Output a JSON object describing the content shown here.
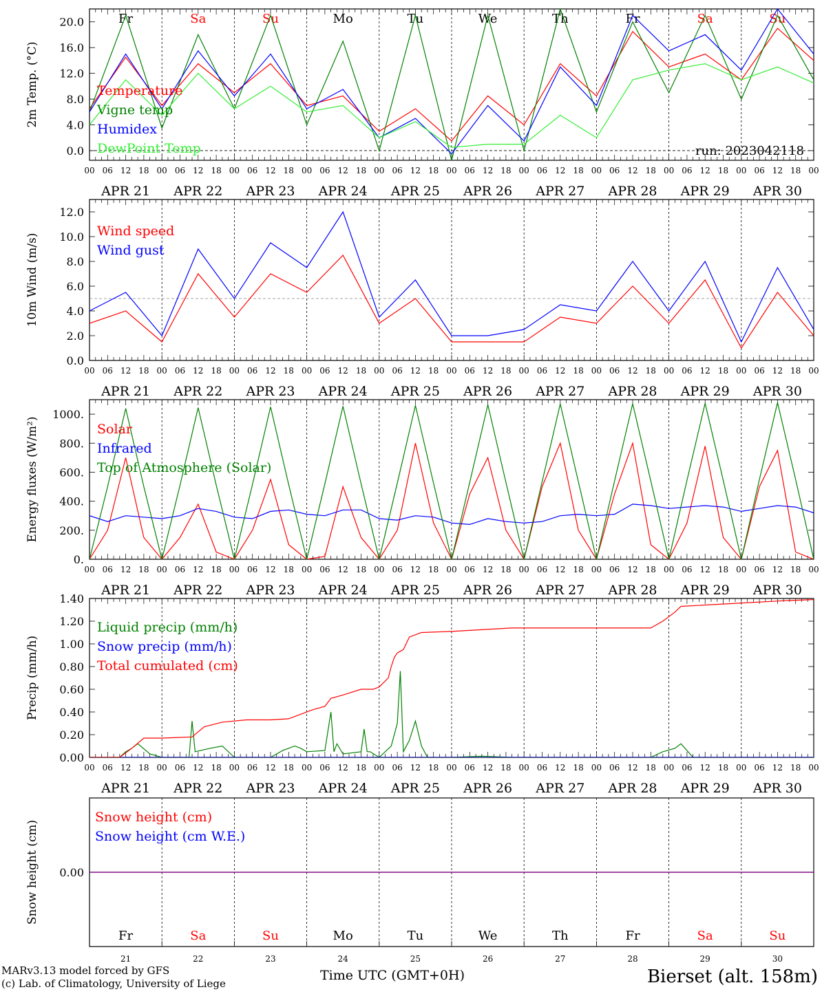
{
  "footer": {
    "credit_line1": "MARv3.13 model forced by GFS",
    "credit_line2": "(c) Lab. of Climatology, University of Liege",
    "time_axis_label": "Time UTC (GMT+0H)",
    "station": "Bierset (alt. 158m)"
  },
  "days": {
    "weekdays": [
      "Fr",
      "Sa",
      "Su",
      "Mo",
      "Tu",
      "We",
      "Th",
      "Fr",
      "Sa",
      "Su"
    ],
    "weekend_flags": [
      false,
      true,
      true,
      false,
      false,
      false,
      false,
      false,
      true,
      true
    ],
    "dates": [
      "APR 21",
      "APR 22",
      "APR 23",
      "APR 24",
      "APR 25",
      "APR 26",
      "APR 27",
      "APR 28",
      "APR 29",
      "APR 30"
    ],
    "day_numbers": [
      "21",
      "22",
      "23",
      "24",
      "25",
      "26",
      "27",
      "28",
      "29",
      "30"
    ],
    "hour_ticks": [
      "00",
      "06",
      "12",
      "18"
    ],
    "final_tick": "00"
  },
  "colors": {
    "red": "#ff0000",
    "green": "#008000",
    "blue": "#0000ff",
    "light_green": "#33ee33",
    "purple": "#7f007f",
    "weekday_text": "#000000",
    "weekend_text": "#ff0000",
    "station_text": "#3333ee"
  },
  "chart_data": [
    {
      "type": "line",
      "ylabel": "2m Temp. (°C)",
      "ylim": [
        -1.5,
        22
      ],
      "yticks": [
        "0.0",
        "4.0",
        "8.0",
        "12.0",
        "16.0",
        "20.0"
      ],
      "ytick_values": [
        0,
        4,
        8,
        12,
        16,
        20
      ],
      "ref_line": 0,
      "annotation": "run: 2023042118",
      "x_hours": [
        0,
        12,
        24,
        36,
        48,
        60,
        72,
        84,
        96,
        108,
        120,
        132,
        144,
        156,
        168,
        180,
        192,
        204,
        216,
        228,
        240
      ],
      "series": [
        {
          "name": "Temperature",
          "color": "red",
          "values": [
            6.5,
            14.5,
            7.0,
            13.5,
            9.0,
            13.5,
            7.0,
            8.5,
            3.0,
            6.5,
            1.5,
            8.5,
            4.0,
            13.5,
            8.5,
            18.5,
            13.0,
            15.0,
            11.0,
            19.0,
            14.0
          ]
        },
        {
          "name": "Vigne temp",
          "color": "green",
          "values": [
            6.0,
            21.0,
            3.5,
            18.0,
            6.5,
            21.0,
            4.0,
            17.0,
            0.0,
            21.0,
            -1.5,
            21.0,
            0.0,
            22.0,
            6.0,
            20.0,
            9.0,
            21.0,
            8.0,
            21.0,
            11.0
          ]
        },
        {
          "name": "Humidex",
          "color": "blue",
          "values": [
            6.0,
            15.0,
            6.5,
            15.5,
            8.5,
            15.0,
            6.5,
            9.5,
            2.0,
            5.0,
            -0.5,
            7.0,
            1.5,
            13.0,
            7.0,
            21.0,
            15.5,
            18.0,
            12.5,
            22.0,
            15.0
          ]
        },
        {
          "name": "DewPoint Temp",
          "color": "light_green",
          "values": [
            4.0,
            11.0,
            5.5,
            12.0,
            6.5,
            10.0,
            6.0,
            7.0,
            2.0,
            4.5,
            0.5,
            1.0,
            1.0,
            5.5,
            2.0,
            11.0,
            12.5,
            13.5,
            11.0,
            13.0,
            10.5
          ]
        }
      ]
    },
    {
      "type": "line",
      "ylabel": "10m Wind (m/s)",
      "ylim": [
        0,
        13
      ],
      "yticks": [
        "0.0",
        "2.0",
        "4.0",
        "6.0",
        "8.0",
        "10.0",
        "12.0"
      ],
      "ytick_values": [
        0,
        2,
        4,
        6,
        8,
        10,
        12
      ],
      "ref_line": 5,
      "x_hours": [
        0,
        12,
        24,
        36,
        48,
        60,
        72,
        84,
        96,
        108,
        120,
        132,
        144,
        156,
        168,
        180,
        192,
        204,
        216,
        228,
        240
      ],
      "series": [
        {
          "name": "Wind speed",
          "color": "red",
          "values": [
            3.0,
            4.0,
            1.5,
            7.0,
            3.5,
            7.0,
            5.5,
            8.5,
            3.0,
            5.0,
            1.5,
            1.5,
            1.5,
            3.5,
            3.0,
            6.0,
            3.0,
            6.5,
            1.0,
            5.5,
            2.0
          ]
        },
        {
          "name": "Wind gust",
          "color": "blue",
          "values": [
            4.0,
            5.5,
            2.0,
            9.0,
            5.0,
            9.5,
            7.5,
            12.0,
            3.5,
            6.5,
            2.0,
            2.0,
            2.5,
            4.5,
            4.0,
            8.0,
            4.0,
            8.0,
            1.5,
            7.5,
            2.5
          ]
        }
      ]
    },
    {
      "type": "line",
      "ylabel": "Energy fluxes (W/m²)",
      "ylim": [
        0,
        1100
      ],
      "yticks": [
        "0.",
        "200.",
        "400.",
        "600.",
        "800.",
        "1000."
      ],
      "ytick_values": [
        0,
        200,
        400,
        600,
        800,
        1000
      ],
      "x_hours": [
        0,
        6,
        12,
        18,
        24,
        30,
        36,
        42,
        48,
        54,
        60,
        66,
        72,
        78,
        84,
        90,
        96,
        102,
        108,
        114,
        120,
        126,
        132,
        138,
        144,
        150,
        156,
        162,
        168,
        174,
        180,
        186,
        192,
        198,
        204,
        210,
        216,
        222,
        228,
        234,
        240
      ],
      "series": [
        {
          "name": "Solar",
          "color": "red",
          "values": [
            0,
            200,
            700,
            150,
            0,
            150,
            380,
            50,
            0,
            200,
            550,
            100,
            0,
            20,
            500,
            150,
            0,
            200,
            800,
            250,
            0,
            450,
            700,
            200,
            0,
            500,
            800,
            200,
            0,
            450,
            800,
            100,
            0,
            250,
            780,
            150,
            0,
            500,
            750,
            50,
            0
          ]
        },
        {
          "name": "Infrared",
          "color": "blue",
          "values": [
            300,
            260,
            300,
            290,
            280,
            300,
            350,
            330,
            290,
            280,
            330,
            340,
            310,
            300,
            340,
            340,
            280,
            270,
            300,
            290,
            250,
            240,
            280,
            260,
            250,
            260,
            300,
            310,
            300,
            310,
            380,
            370,
            350,
            360,
            370,
            360,
            330,
            350,
            370,
            360,
            320
          ]
        },
        {
          "name": "Top of Atmosphere (Solar)",
          "color": "green",
          "values": [
            0,
            500,
            1040,
            500,
            0,
            510,
            1045,
            510,
            0,
            515,
            1050,
            515,
            0,
            520,
            1055,
            520,
            0,
            525,
            1060,
            525,
            0,
            530,
            1065,
            530,
            0,
            535,
            1070,
            535,
            0,
            540,
            1072,
            540,
            0,
            545,
            1075,
            545,
            0,
            550,
            1080,
            550,
            0
          ]
        }
      ]
    },
    {
      "type": "line",
      "ylabel": "Precip (mm/h)",
      "ylim": [
        0,
        1.4
      ],
      "yticks": [
        "0.00",
        "0.20",
        "0.40",
        "0.60",
        "0.80",
        "1.00",
        "1.20",
        "1.40"
      ],
      "ytick_values": [
        0,
        0.2,
        0.4,
        0.6,
        0.8,
        1.0,
        1.2,
        1.4
      ],
      "series": [
        {
          "name": "Liquid precip (mm/h)",
          "color": "green",
          "x_hours": [
            0,
            10,
            12,
            14,
            16,
            20,
            24,
            33,
            34,
            35,
            40,
            44,
            48,
            60,
            64,
            66,
            68,
            70,
            72,
            78,
            80,
            81,
            82,
            84,
            90,
            91,
            92,
            93,
            96,
            100,
            102,
            103,
            104,
            106,
            108,
            110,
            112,
            120,
            130,
            140,
            186,
            190,
            194,
            196,
            200,
            240
          ],
          "values": [
            0,
            0,
            0.05,
            0.08,
            0.12,
            0.03,
            0,
            0,
            0.32,
            0.05,
            0.08,
            0.1,
            0,
            0,
            0.06,
            0.08,
            0.1,
            0.08,
            0.05,
            0.06,
            0.4,
            0.05,
            0.12,
            0.03,
            0.05,
            0.25,
            0.05,
            0.05,
            0,
            0.1,
            0.3,
            0.76,
            0.05,
            0.15,
            0.32,
            0.1,
            0,
            0,
            0.01,
            0,
            0,
            0.05,
            0.08,
            0.12,
            0,
            0
          ]
        },
        {
          "name": "Snow precip (mm/h)",
          "color": "blue",
          "x_hours": [
            0,
            240
          ],
          "values": [
            0,
            0
          ]
        },
        {
          "name": "Total cumulated (cm)",
          "color": "red",
          "x_hours": [
            0,
            10,
            14,
            18,
            24,
            34,
            38,
            44,
            52,
            60,
            66,
            70,
            74,
            78,
            80,
            84,
            90,
            94,
            96,
            99,
            100,
            101,
            102,
            104,
            106,
            110,
            120,
            140,
            180,
            186,
            190,
            194,
            196,
            216,
            230,
            240
          ],
          "values": [
            0,
            0,
            0.08,
            0.17,
            0.17,
            0.18,
            0.27,
            0.31,
            0.33,
            0.33,
            0.34,
            0.38,
            0.42,
            0.45,
            0.52,
            0.55,
            0.6,
            0.6,
            0.62,
            0.7,
            0.8,
            0.88,
            0.92,
            0.95,
            1.06,
            1.1,
            1.11,
            1.14,
            1.14,
            1.14,
            1.2,
            1.28,
            1.33,
            1.36,
            1.38,
            1.39
          ]
        }
      ]
    },
    {
      "type": "line",
      "ylabel": "Snow height (cm)",
      "ylim": [
        -1,
        1
      ],
      "yticks": [
        "0.00"
      ],
      "ytick_values": [
        0
      ],
      "x_hours": [
        0,
        240
      ],
      "series": [
        {
          "name": "Snow height (cm)",
          "color": "red",
          "values": [
            0,
            0
          ]
        },
        {
          "name": "Snow height (cm W.E.)",
          "color": "blue",
          "values": [
            0,
            0
          ]
        }
      ]
    }
  ]
}
